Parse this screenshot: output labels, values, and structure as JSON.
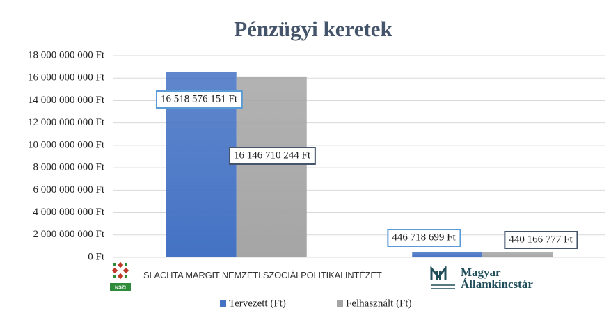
{
  "chart_data": {
    "type": "bar",
    "title": "Pénzügyi keretek",
    "categories": [
      "SLACHTA MARGIT NEMZETI SZOCIÁLPOLITIKAI INTÉZET",
      "Magyar\nÁllamkincstár"
    ],
    "annotations": [
      "NSZI"
    ],
    "series": [
      {
        "name": "Tervezett (Ft)",
        "color": "#4472c4",
        "values": [
          16518576151,
          446718699
        ],
        "value_labels": [
          "16 518 576 151 Ft",
          "446 718 699 Ft"
        ]
      },
      {
        "name": "Felhasznált (Ft)",
        "color": "#a5a5a5",
        "values": [
          16146710244,
          440166777
        ],
        "value_labels": [
          "16 146 710 244 Ft",
          "440 166 777 Ft"
        ]
      }
    ],
    "ylim": [
      0,
      18000000000
    ],
    "yticks": [
      {
        "value": 0,
        "label": "0 Ft"
      },
      {
        "value": 2000000000,
        "label": "2 000 000 000 Ft"
      },
      {
        "value": 4000000000,
        "label": "4 000 000 000 Ft"
      },
      {
        "value": 6000000000,
        "label": "6 000 000 000 Ft"
      },
      {
        "value": 8000000000,
        "label": "8 000 000 000 Ft"
      },
      {
        "value": 10000000000,
        "label": "10 000 000 000 Ft"
      },
      {
        "value": 12000000000,
        "label": "12 000 000 000 Ft"
      },
      {
        "value": 14000000000,
        "label": "14 000 000 000 Ft"
      },
      {
        "value": 16000000000,
        "label": "16 000 000 000 Ft"
      },
      {
        "value": 18000000000,
        "label": "18 000 000 000 Ft"
      }
    ],
    "grid": true,
    "legend": "bottom"
  }
}
